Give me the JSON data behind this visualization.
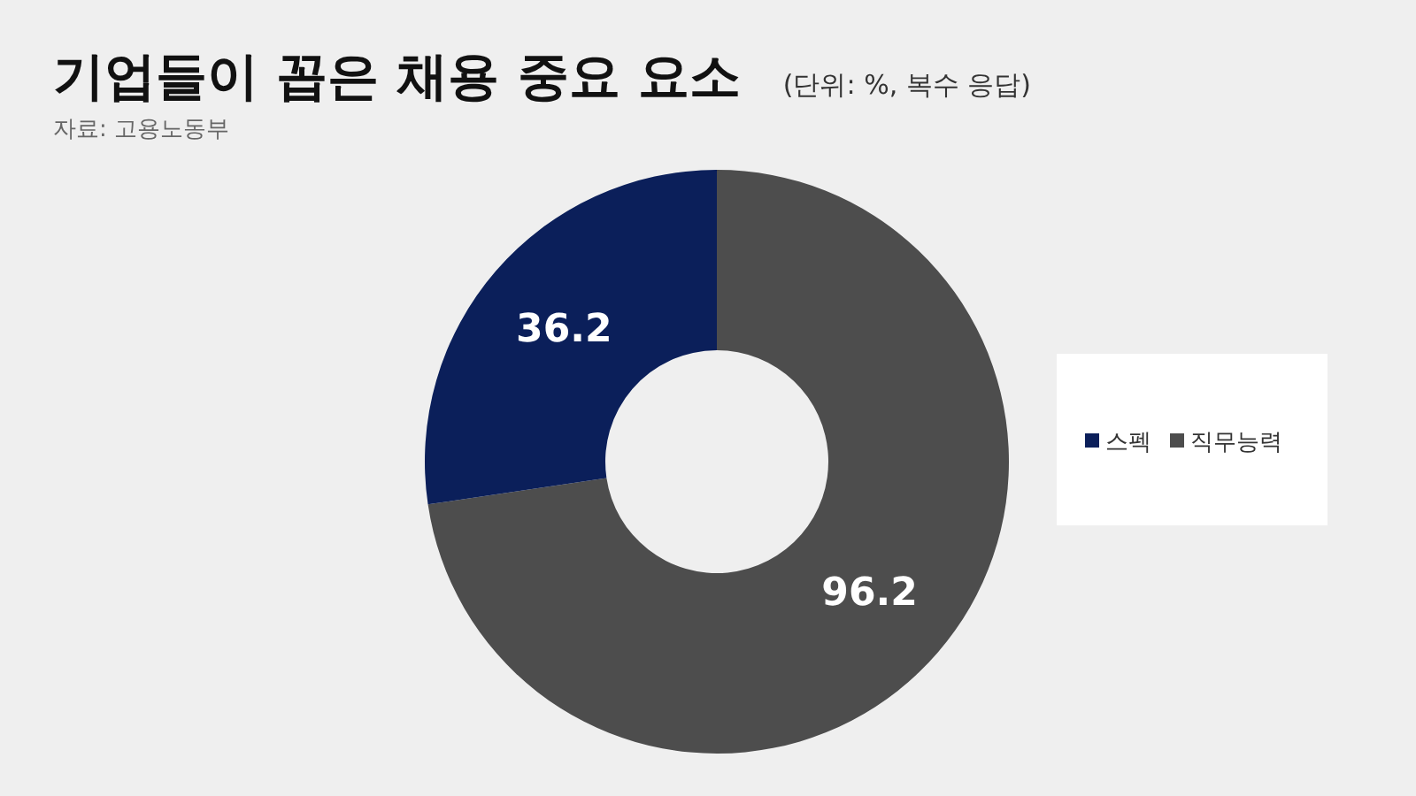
{
  "chart_data": {
    "type": "donut",
    "title": "기업들이 꼽은 채용 중요 요소",
    "subtitle": "(단위: %, 복수 응답)",
    "annotations": [
      "자료: 고용노동부"
    ],
    "categories": [
      "직무능력",
      "스펙"
    ],
    "values": [
      96.2,
      36.2
    ],
    "colors": [
      "#4d4d4d",
      "#0b1f5a"
    ],
    "data_labels": true,
    "legend": "right"
  }
}
